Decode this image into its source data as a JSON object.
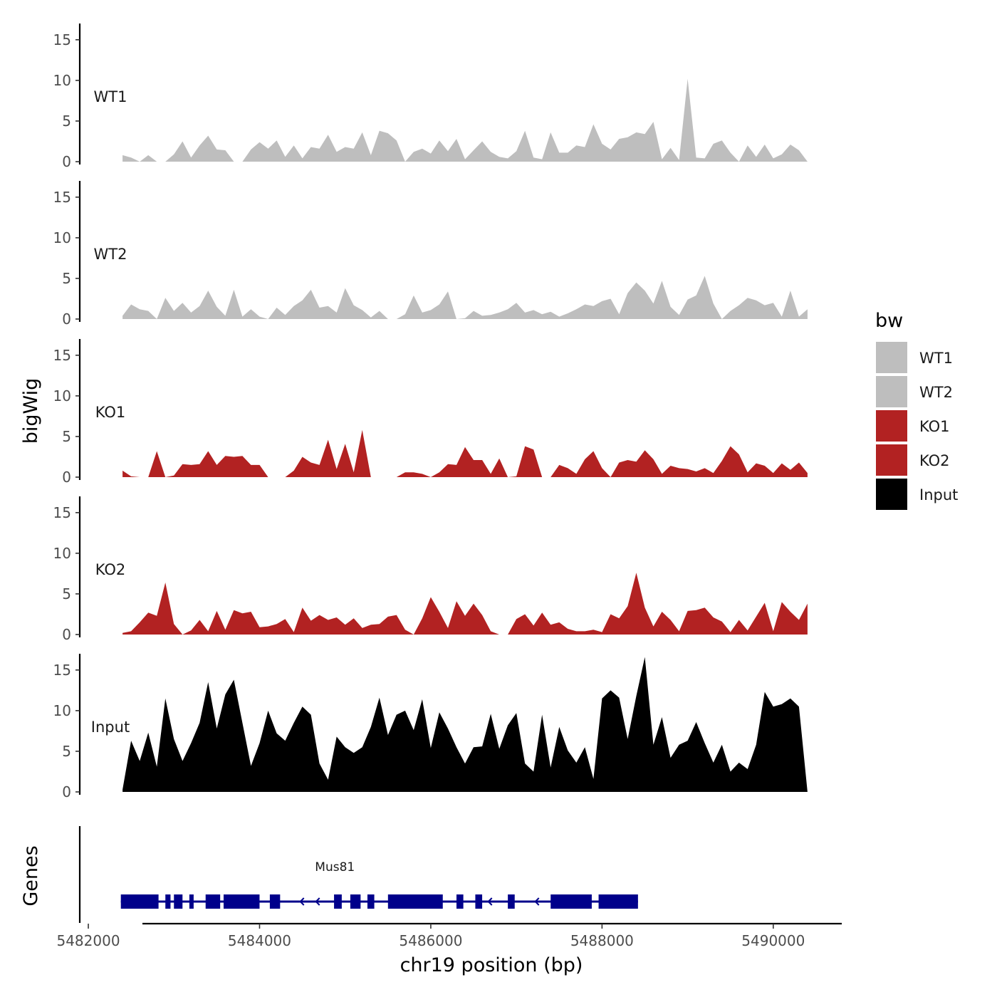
{
  "chart_data": {
    "type": "area",
    "xlabel": "chr19 position (bp)",
    "ylabel": "bigWig",
    "genes_label": "Genes",
    "xlim": [
      5481900,
      5490800
    ],
    "x_ticks": [
      5482000,
      5484000,
      5486000,
      5488000,
      5490000
    ],
    "x_tick_labels": [
      "5482000",
      "5484000",
      "5486000",
      "5488000",
      "5490000"
    ],
    "ylim": [
      0,
      17
    ],
    "y_ticks": [
      0,
      5,
      10,
      15
    ],
    "y_tick_labels": [
      "0",
      "5",
      "10",
      "15"
    ],
    "legend": {
      "title": "bw",
      "position": "right",
      "entries": [
        {
          "label": "WT1",
          "color": "#bebebe"
        },
        {
          "label": "WT2",
          "color": "#bebebe"
        },
        {
          "label": "KO1",
          "color": "#b22222"
        },
        {
          "label": "KO2",
          "color": "#b22222"
        },
        {
          "label": "Input",
          "color": "#000000"
        }
      ]
    },
    "x": [
      5482400,
      5482500,
      5482600,
      5482700,
      5482800,
      5482900,
      5483000,
      5483100,
      5483200,
      5483300,
      5483400,
      5483500,
      5483600,
      5483700,
      5483800,
      5483900,
      5484000,
      5484100,
      5484200,
      5484300,
      5484400,
      5484500,
      5484600,
      5484700,
      5484800,
      5484900,
      5485000,
      5485100,
      5485200,
      5485300,
      5485400,
      5485500,
      5485600,
      5485700,
      5485800,
      5485900,
      5486000,
      5486100,
      5486200,
      5486300,
      5486400,
      5486500,
      5486600,
      5486700,
      5486800,
      5486900,
      5487000,
      5487100,
      5487200,
      5487300,
      5487400,
      5487500,
      5487600,
      5487700,
      5487800,
      5487900,
      5488000,
      5488100,
      5488200,
      5488300,
      5488400,
      5488500,
      5488600,
      5488700,
      5488800,
      5488900,
      5489000,
      5489100,
      5489200,
      5489300,
      5489400,
      5489500,
      5489600,
      5489700,
      5489800,
      5489900,
      5490000,
      5490100,
      5490200,
      5490300,
      5490400
    ],
    "series": [
      {
        "name": "WT1",
        "color": "#bebebe",
        "values": [
          0.8,
          0.5,
          0,
          0.8,
          0,
          0,
          0.9,
          2.5,
          0.5,
          2,
          3.2,
          1.5,
          1.4,
          0,
          0,
          1.5,
          2.4,
          1.6,
          2.6,
          0.6,
          2,
          0.4,
          1.8,
          1.6,
          3.3,
          1.2,
          1.8,
          1.6,
          3.6,
          0.8,
          3.8,
          3.5,
          2.6,
          0,
          1.2,
          1.6,
          1,
          2.6,
          1.3,
          2.8,
          0.3,
          1.4,
          2.5,
          1.2,
          0.6,
          0.4,
          1.3,
          3.8,
          0.5,
          0.3,
          3.6,
          1.1,
          1.1,
          2,
          1.8,
          4.6,
          2.2,
          1.5,
          2.8,
          3,
          3.6,
          3.4,
          4.9,
          0.3,
          1.7,
          0.2,
          10.2,
          0.5,
          0.4,
          2.2,
          2.6,
          1.1,
          0,
          2,
          0.6,
          2.1,
          0.4,
          0.9,
          2.1,
          1.4,
          0
        ]
      },
      {
        "name": "WT2",
        "color": "#bebebe",
        "values": [
          0.4,
          1.8,
          1.2,
          1,
          0,
          2.6,
          1,
          2,
          0.8,
          1.6,
          3.5,
          1.5,
          0.4,
          3.6,
          0.3,
          1.2,
          0.3,
          0,
          1.4,
          0.5,
          1.6,
          2.3,
          3.6,
          1.4,
          1.6,
          0.8,
          3.8,
          1.7,
          1.1,
          0.2,
          1,
          0,
          0,
          0.6,
          2.9,
          0.8,
          1.1,
          1.8,
          3.4,
          0,
          0.1,
          1,
          0.4,
          0.5,
          0.8,
          1.2,
          2,
          0.8,
          1.1,
          0.6,
          0.9,
          0.3,
          0.7,
          1.2,
          1.8,
          1.6,
          2.2,
          2.5,
          0.6,
          3.2,
          4.5,
          3.5,
          1.9,
          4.7,
          1.5,
          0.5,
          2.4,
          2.9,
          5.3,
          1.9,
          0,
          1,
          1.7,
          2.6,
          2.3,
          1.7,
          2,
          0.3,
          3.5,
          0.3,
          1.2
        ]
      },
      {
        "name": "KO1",
        "color": "#b22222",
        "values": [
          0.8,
          0.1,
          0,
          0,
          3.2,
          0,
          0.2,
          1.6,
          1.5,
          1.6,
          3.2,
          1.5,
          2.6,
          2.5,
          2.6,
          1.5,
          1.5,
          0,
          0,
          0,
          0.8,
          2.5,
          1.8,
          1.5,
          4.6,
          1,
          4.1,
          0.6,
          5.8,
          0,
          0,
          0,
          0,
          0.6,
          0.6,
          0.4,
          0,
          0.6,
          1.6,
          1.5,
          3.7,
          2.1,
          2.1,
          0.4,
          2.3,
          0,
          0.1,
          3.8,
          3.4,
          0,
          0,
          1.5,
          1.1,
          0.4,
          2.2,
          3.2,
          1.1,
          0,
          1.8,
          2.1,
          1.9,
          3.3,
          2.2,
          0.4,
          1.4,
          1.1,
          1,
          0.7,
          1.1,
          0.5,
          2,
          3.8,
          2.8,
          0.6,
          1.7,
          1.4,
          0.5,
          1.7,
          0.9,
          1.8,
          0.5
        ]
      },
      {
        "name": "KO2",
        "color": "#b22222",
        "values": [
          0.2,
          0.4,
          1.5,
          2.7,
          2.3,
          6.4,
          1.3,
          0,
          0.5,
          1.8,
          0.4,
          2.9,
          0.6,
          3,
          2.6,
          2.8,
          0.9,
          1,
          1.3,
          1.9,
          0.3,
          3.3,
          1.7,
          2.4,
          1.8,
          2.1,
          1.2,
          2,
          0.8,
          1.2,
          1.3,
          2.2,
          2.4,
          0.6,
          0,
          2,
          4.6,
          2.8,
          0.8,
          4.1,
          2.3,
          3.8,
          2.4,
          0.4,
          0,
          0,
          1.9,
          2.5,
          1.1,
          2.7,
          1.2,
          1.5,
          0.7,
          0.4,
          0.4,
          0.6,
          0.3,
          2.5,
          2,
          3.5,
          7.6,
          3.3,
          1,
          2.8,
          1.8,
          0.4,
          2.9,
          3,
          3.3,
          2.1,
          1.6,
          0.3,
          1.8,
          0.5,
          2.2,
          3.9,
          0.4,
          4,
          2.8,
          1.8,
          3.8
        ]
      },
      {
        "name": "Input",
        "color": "#000000",
        "values": [
          0.3,
          6.3,
          3.8,
          7.3,
          3.1,
          11.5,
          6.5,
          3.8,
          6,
          8.5,
          13.5,
          7.8,
          12,
          13.8,
          8.5,
          3.2,
          6,
          10,
          7.2,
          6.3,
          8.5,
          10.5,
          9.5,
          3.5,
          1.5,
          6.8,
          5.5,
          4.8,
          5.5,
          8,
          11.6,
          7,
          9.5,
          10,
          7.6,
          11.4,
          5.4,
          9.8,
          7.8,
          5.5,
          3.5,
          5.5,
          5.6,
          9.6,
          5.3,
          8.2,
          9.7,
          3.5,
          2.5,
          9.5,
          3,
          8,
          5.1,
          3.6,
          5.5,
          1.6,
          11.5,
          12.5,
          11.6,
          6.5,
          11.8,
          16.6,
          5.8,
          9.2,
          4.2,
          5.8,
          6.3,
          8.6,
          6,
          3.6,
          5.8,
          2.5,
          3.6,
          2.8,
          5.8,
          12.3,
          10.5,
          10.8,
          11.5,
          10.5,
          0
        ]
      }
    ],
    "genes": [
      {
        "name": "Mus81",
        "strand": "-",
        "color": "#00008b",
        "start": 5482380,
        "end": 5488420,
        "exons": [
          [
            5482380,
            5482820
          ],
          [
            5482900,
            5482960
          ],
          [
            5483000,
            5483100
          ],
          [
            5483180,
            5483230
          ],
          [
            5483370,
            5483540
          ],
          [
            5483580,
            5484000
          ],
          [
            5484120,
            5484240
          ],
          [
            5484870,
            5484960
          ],
          [
            5485060,
            5485180
          ],
          [
            5485260,
            5485340
          ],
          [
            5485500,
            5486140
          ],
          [
            5486300,
            5486380
          ],
          [
            5486520,
            5486600
          ],
          [
            5486900,
            5486980
          ],
          [
            5487400,
            5487880
          ],
          [
            5487960,
            5488420
          ]
        ]
      }
    ]
  }
}
